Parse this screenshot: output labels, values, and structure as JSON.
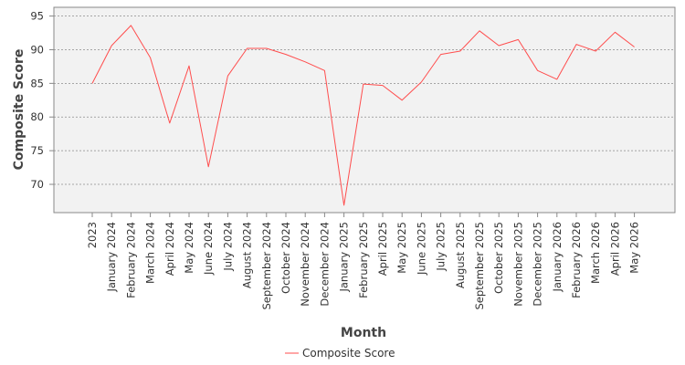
{
  "colors": {
    "plot_background": "#f2f2f2",
    "plot_border": "#888888",
    "gridline": "#8c8c8c",
    "series_line": "#ff4d4d"
  },
  "chart_data": {
    "type": "line",
    "xlabel": "Month",
    "ylabel": "Composite Score",
    "ylim": [
      65.8,
      96.3
    ],
    "yticks": [
      70,
      75,
      80,
      85,
      90,
      95
    ],
    "grid": "horizontal dashed",
    "legend": "bottom-center",
    "categories": [
      "2023",
      "January 2024",
      "February 2024",
      "March 2024",
      "April 2024",
      "May 2024",
      "June 2024",
      "July 2024",
      "August 2024",
      "September 2024",
      "October 2024",
      "November 2024",
      "December 2024",
      "January 2025",
      "February 2025",
      "April 2025",
      "May 2025",
      "June 2025",
      "July 2025",
      "August 2025",
      "September 2025",
      "October 2025",
      "November 2025",
      "December 2025",
      "January 2026",
      "February 2026",
      "March 2026",
      "April 2026",
      "May 2026"
    ],
    "series": [
      {
        "name": "Composite Score",
        "values": [
          85.0,
          90.6,
          93.6,
          88.8,
          79.1,
          87.6,
          72.6,
          86.1,
          90.2,
          90.2,
          89.3,
          88.2,
          86.9,
          66.9,
          84.9,
          84.7,
          82.5,
          85.2,
          89.3,
          89.8,
          92.8,
          90.6,
          91.5,
          86.9,
          85.6,
          90.8,
          89.8,
          92.6,
          90.4
        ]
      }
    ]
  }
}
